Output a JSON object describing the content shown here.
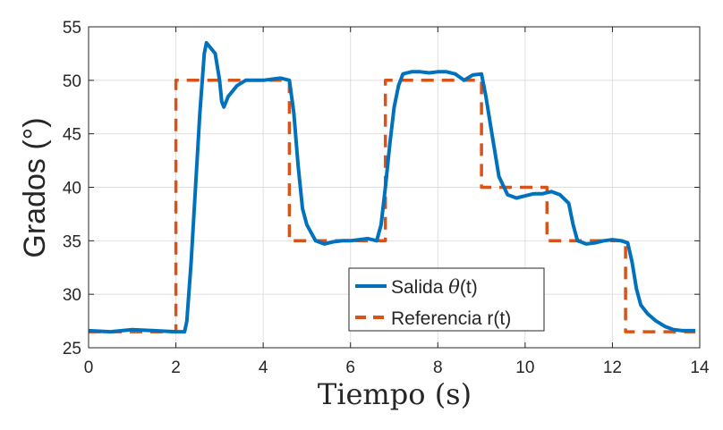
{
  "chart_data": {
    "type": "line",
    "xlabel": "Tiempo (s)",
    "ylabel": "Grados (°)",
    "xlim": [
      0,
      14
    ],
    "ylim": [
      25,
      55
    ],
    "xticks": [
      0,
      2,
      4,
      6,
      8,
      10,
      12,
      14
    ],
    "yticks": [
      25,
      30,
      35,
      40,
      45,
      50,
      55
    ],
    "grid": true,
    "legend_position": "lower-center",
    "series": [
      {
        "name_prefix": "Salida ",
        "name_symbol": "θ",
        "name_suffix": "(t)",
        "color": "#0072BD",
        "style": "solid",
        "x": [
          0,
          0.5,
          1.0,
          1.5,
          2.0,
          2.2,
          2.25,
          2.35,
          2.45,
          2.55,
          2.65,
          2.7,
          2.8,
          2.9,
          3.0,
          3.05,
          3.1,
          3.2,
          3.4,
          3.6,
          3.8,
          4.0,
          4.2,
          4.4,
          4.6,
          4.7,
          4.8,
          4.9,
          5.0,
          5.2,
          5.4,
          5.6,
          5.8,
          6.0,
          6.2,
          6.4,
          6.6,
          6.7,
          6.8,
          6.9,
          7.0,
          7.1,
          7.2,
          7.4,
          7.6,
          7.8,
          8.0,
          8.2,
          8.4,
          8.6,
          8.8,
          9.0,
          9.1,
          9.2,
          9.3,
          9.4,
          9.6,
          9.8,
          10.0,
          10.2,
          10.4,
          10.6,
          10.8,
          11.0,
          11.1,
          11.2,
          11.4,
          11.6,
          11.8,
          12.0,
          12.2,
          12.35,
          12.45,
          12.55,
          12.65,
          12.8,
          13.0,
          13.2,
          13.4,
          13.6,
          13.9
        ],
        "y": [
          26.6,
          26.5,
          26.7,
          26.6,
          26.5,
          26.5,
          27.5,
          33.0,
          40.0,
          47.0,
          52.5,
          53.5,
          53.0,
          52.5,
          50.0,
          48.0,
          47.5,
          48.5,
          49.5,
          50.0,
          50.0,
          50.0,
          50.1,
          50.2,
          50.0,
          47.0,
          42.0,
          38.0,
          36.5,
          35.0,
          34.7,
          34.9,
          35.0,
          35.0,
          35.1,
          35.2,
          35.0,
          36.5,
          40.0,
          44.0,
          47.5,
          49.5,
          50.6,
          50.8,
          50.8,
          50.7,
          50.8,
          50.8,
          50.6,
          50.0,
          50.5,
          50.6,
          48.5,
          46.0,
          43.5,
          41.0,
          39.3,
          39.0,
          39.2,
          39.4,
          39.4,
          39.6,
          39.3,
          38.5,
          36.5,
          35.0,
          34.7,
          34.8,
          35.0,
          35.1,
          35.0,
          34.8,
          33.0,
          30.5,
          29.0,
          28.2,
          27.5,
          27.0,
          26.7,
          26.6,
          26.6
        ]
      },
      {
        "name": "Referencia r(t)",
        "color": "#D95319",
        "style": "dashed",
        "x": [
          0,
          2,
          2,
          4.6,
          4.6,
          6.8,
          6.8,
          9.0,
          9.0,
          10.5,
          10.5,
          12.3,
          12.3,
          13.9
        ],
        "y": [
          26.5,
          26.5,
          50,
          50,
          35,
          35,
          50,
          50,
          40,
          40,
          35,
          35,
          26.5,
          26.5
        ]
      }
    ]
  }
}
